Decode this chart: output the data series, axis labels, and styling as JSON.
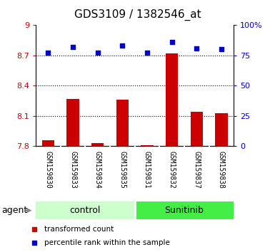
{
  "title": "GDS3109 / 1382546_at",
  "samples": [
    "GSM159830",
    "GSM159833",
    "GSM159834",
    "GSM159835",
    "GSM159831",
    "GSM159832",
    "GSM159837",
    "GSM159838"
  ],
  "bar_values": [
    7.86,
    8.27,
    7.83,
    8.26,
    7.81,
    8.72,
    8.14,
    8.13
  ],
  "dot_values": [
    77,
    82,
    77,
    83,
    77,
    86,
    81,
    80
  ],
  "bar_color": "#cc0000",
  "dot_color": "#0000cc",
  "ylim_left": [
    7.8,
    9.0
  ],
  "ylim_right": [
    0,
    100
  ],
  "yticks_left": [
    7.8,
    8.1,
    8.4,
    8.7,
    9.0
  ],
  "yticks_right": [
    0,
    25,
    50,
    75,
    100
  ],
  "ytick_labels_left": [
    "7.8",
    "8.1",
    "8.4",
    "8.7",
    "9"
  ],
  "ytick_labels_right": [
    "0",
    "25",
    "50",
    "75",
    "100%"
  ],
  "hlines": [
    8.1,
    8.4,
    8.7
  ],
  "groups": [
    {
      "label": "control",
      "start": 0,
      "end": 3,
      "color": "#ccffcc"
    },
    {
      "label": "Sunitinib",
      "start": 4,
      "end": 7,
      "color": "#44ee44"
    }
  ],
  "agent_label": "agent",
  "legend": [
    {
      "label": "transformed count",
      "color": "#cc0000"
    },
    {
      "label": "percentile rank within the sample",
      "color": "#0000cc"
    }
  ],
  "bar_baseline": 7.8,
  "ticklabel_bg": "#d0d0d0",
  "plot_bg": "#ffffff",
  "bar_width": 0.5
}
